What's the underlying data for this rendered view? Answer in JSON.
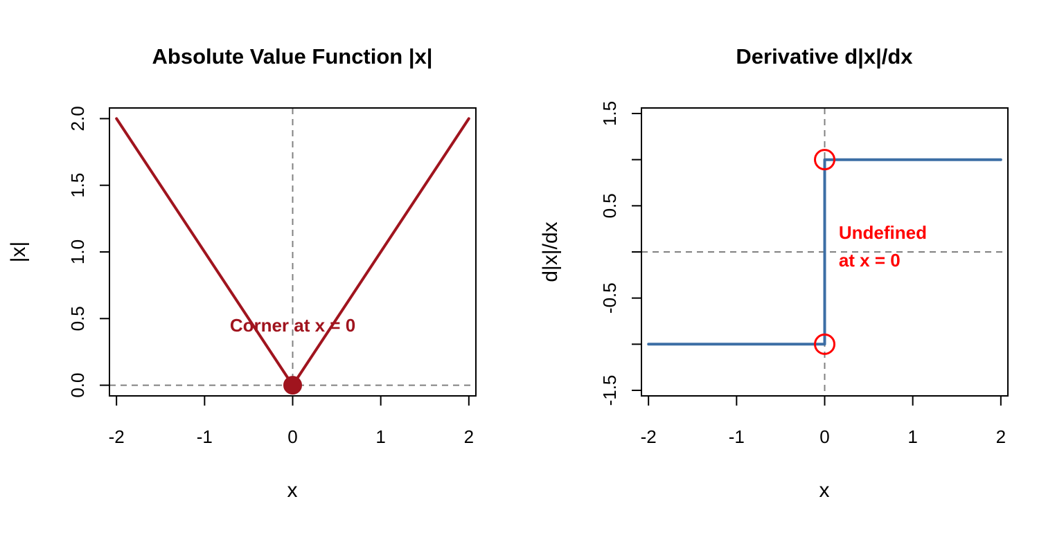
{
  "chart_data": [
    {
      "type": "line",
      "title": "Absolute Value Function |x|",
      "xlabel": "x",
      "ylabel": "|x|",
      "xlim": [
        -2.08,
        2.08
      ],
      "ylim": [
        -0.08,
        2.08
      ],
      "xticks": [
        -2,
        -1,
        0,
        1,
        2
      ],
      "xtick_labels": [
        "-2",
        "-1",
        "0",
        "1",
        "2"
      ],
      "yticks": [
        0,
        0.5,
        1,
        1.5,
        2
      ],
      "ytick_labels": [
        "0.0",
        "0.5",
        "1.0",
        "1.5",
        "2.0"
      ],
      "grid": false,
      "line_color": "#a0141e",
      "series": [
        {
          "x": [
            -2,
            0,
            2
          ],
          "y": [
            2,
            0,
            2
          ]
        }
      ],
      "points": [
        {
          "x": 0,
          "y": 0,
          "style": "filled",
          "color": "#a0141e"
        }
      ],
      "reference_lines": [
        {
          "orientation": "vertical",
          "value": 0,
          "style": "dashed",
          "color": "#808080"
        },
        {
          "orientation": "horizontal",
          "value": 0,
          "style": "dashed",
          "color": "#808080"
        }
      ],
      "annotations": [
        {
          "text": "Corner at x = 0",
          "x": 0,
          "y": 0.45,
          "color": "#a0141e"
        }
      ]
    },
    {
      "type": "line",
      "title": "Derivative d|x|/dx",
      "xlabel": "x",
      "ylabel": "d|x|/dx",
      "xlim": [
        -2.08,
        2.08
      ],
      "ylim": [
        -1.56,
        1.56
      ],
      "xticks": [
        -2,
        -1,
        0,
        1,
        2
      ],
      "xtick_labels": [
        "-2",
        "-1",
        "0",
        "1",
        "2"
      ],
      "yticks": [
        -1.5,
        -0.5,
        0.5,
        1.5
      ],
      "ytick_labels": [
        "-1.5",
        "-0.5",
        "0.5",
        "1.5"
      ],
      "yticks_unlabeled": [
        -1,
        0,
        1
      ],
      "grid": false,
      "line_color": "#3c6ea5",
      "series": [
        {
          "x": [
            -2,
            0,
            0,
            2
          ],
          "y": [
            -1,
            -1,
            1,
            1
          ]
        }
      ],
      "points": [
        {
          "x": 0,
          "y": 1,
          "style": "open",
          "color": "#ff0000"
        },
        {
          "x": 0,
          "y": -1,
          "style": "open",
          "color": "#ff0000"
        }
      ],
      "reference_lines": [
        {
          "orientation": "vertical",
          "value": 0,
          "style": "dashed",
          "color": "#808080"
        },
        {
          "orientation": "horizontal",
          "value": 0,
          "style": "dashed",
          "color": "#808080"
        }
      ],
      "annotations": [
        {
          "text": "Undefined",
          "x": 0.16,
          "y": 0.21,
          "color": "#ff0000"
        },
        {
          "text": "at x = 0",
          "x": 0.16,
          "y": -0.09,
          "color": "#ff0000"
        }
      ]
    }
  ]
}
